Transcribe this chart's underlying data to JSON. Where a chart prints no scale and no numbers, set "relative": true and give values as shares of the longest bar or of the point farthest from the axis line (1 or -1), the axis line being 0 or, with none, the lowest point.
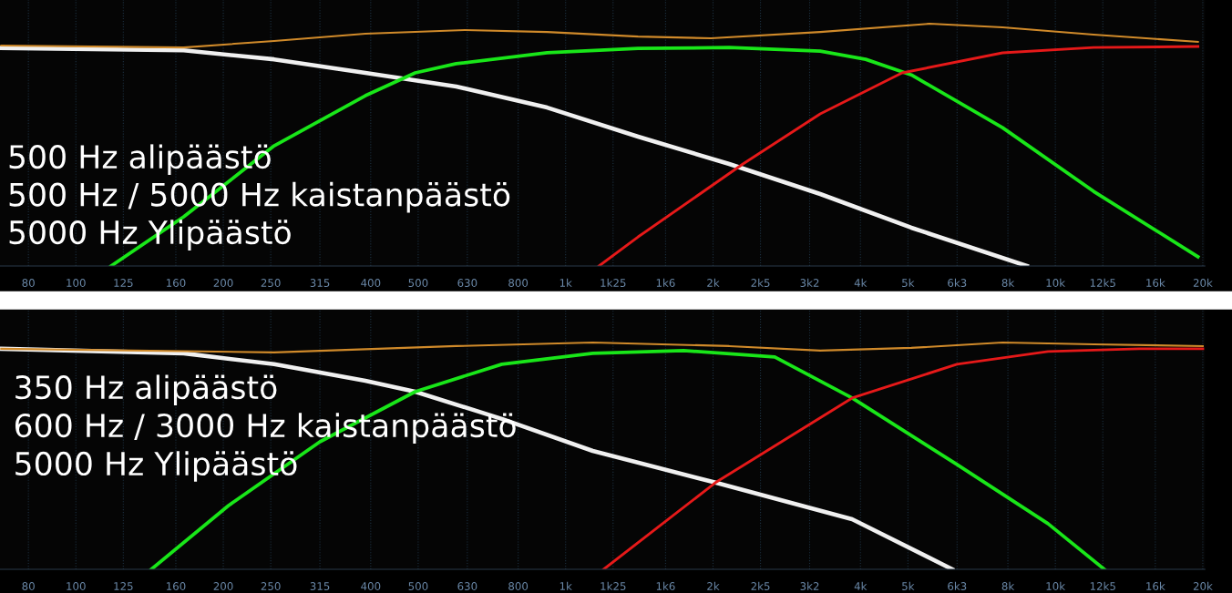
{
  "chart_data": [
    {
      "type": "line",
      "relative": true,
      "log": "x",
      "xlim": [
        70,
        20200
      ],
      "grid": "x",
      "legend": false,
      "marker": "none",
      "line_style": "solid",
      "xticks": [
        80,
        100,
        125,
        160,
        200,
        250,
        315,
        400,
        500,
        630,
        800,
        {
          "value": 1000,
          "label": "1k"
        },
        {
          "value": 1250,
          "label": "1k25"
        },
        {
          "value": 1600,
          "label": "1k6"
        },
        {
          "value": 2000,
          "label": "2k"
        },
        {
          "value": 2500,
          "label": "2k5"
        },
        {
          "value": 3150,
          "label": "3k2"
        },
        {
          "value": 4000,
          "label": "4k"
        },
        {
          "value": 5000,
          "label": "5k"
        },
        {
          "value": 6300,
          "label": "6k3"
        },
        {
          "value": 8000,
          "label": "8k"
        },
        {
          "value": 10000,
          "label": "10k"
        },
        {
          "value": 12500,
          "label": "12k5"
        },
        {
          "value": 16000,
          "label": "16k"
        },
        {
          "value": 20000,
          "label": "20k"
        }
      ],
      "annotations": [
        "500 Hz alipäästö",
        "500 Hz / 5000 Hz kaistanpäästö",
        "5000 Hz Ylipäästö"
      ],
      "series": [
        {
          "color": "#f0f0f0",
          "x": [
            70.4,
            166,
            254,
            390,
            598,
            917,
            1406,
            2158,
            3311,
            5080,
            8750
          ],
          "values": [
            0.9,
            0.89,
            0.853,
            0.797,
            0.741,
            0.654,
            0.534,
            0.421,
            0.297,
            0.158,
            0
          ]
        },
        {
          "color": "#19e619",
          "x": [
            118,
            166,
            254,
            390,
            493,
            598,
            917,
            1406,
            2158,
            3311,
            4100,
            5080,
            7800,
            11970,
            19550
          ],
          "values": [
            0,
            0.203,
            0.496,
            0.703,
            0.797,
            0.835,
            0.88,
            0.898,
            0.902,
            0.887,
            0.853,
            0.789,
            0.571,
            0.308,
            0.038
          ]
        },
        {
          "color": "#e61919",
          "x": [
            1170,
            1406,
            2302,
            3311,
            4865,
            7800,
            11970,
            19550
          ],
          "values": [
            0,
            0.12,
            0.421,
            0.628,
            0.797,
            0.88,
            0.902,
            0.906
          ]
        },
        {
          "color": "#d08a2a",
          "x": [
            70.4,
            166,
            254,
            390,
            624,
            917,
            1406,
            1982,
            3311,
            5535,
            7800,
            11970,
            19550
          ],
          "values": [
            0.91,
            0.902,
            0.929,
            0.959,
            0.974,
            0.966,
            0.947,
            0.94,
            0.966,
            1.0,
            0.985,
            0.955,
            0.925
          ]
        }
      ]
    },
    {
      "type": "line",
      "relative": true,
      "log": "x",
      "xlim": [
        70,
        20200
      ],
      "grid": "x",
      "legend": false,
      "marker": "none",
      "line_style": "solid",
      "xticks": [
        80,
        100,
        125,
        160,
        200,
        250,
        315,
        400,
        500,
        630,
        800,
        {
          "value": 1000,
          "label": "1k"
        },
        {
          "value": 1250,
          "label": "1k25"
        },
        {
          "value": 1600,
          "label": "1k6"
        },
        {
          "value": 2000,
          "label": "2k"
        },
        {
          "value": 2500,
          "label": "2k5"
        },
        {
          "value": 3150,
          "label": "3k2"
        },
        {
          "value": 4000,
          "label": "4k"
        },
        {
          "value": 5000,
          "label": "5k"
        },
        {
          "value": 6300,
          "label": "6k3"
        },
        {
          "value": 8000,
          "label": "8k"
        },
        {
          "value": 10000,
          "label": "10k"
        },
        {
          "value": 12500,
          "label": "12k5"
        },
        {
          "value": 16000,
          "label": "16k"
        },
        {
          "value": 20000,
          "label": "20k"
        }
      ],
      "annotations": [
        "350 Hz alipäästö",
        "600 Hz / 3000 Hz kaistanpäästö",
        "5000 Hz Ylipäästö"
      ],
      "series": [
        {
          "color": "#f0f0f0",
          "x": [
            70.4,
            166,
            254,
            390,
            493,
            741,
            1136,
            2023,
            3846,
            6160
          ],
          "values": [
            0.972,
            0.952,
            0.904,
            0.831,
            0.783,
            0.663,
            0.522,
            0.382,
            0.221,
            0
          ]
        },
        {
          "color": "#19e619",
          "x": [
            142.6,
            205,
            315,
            493,
            741,
            1136,
            1742,
            2673,
            3846,
            6295,
            9660,
            12590
          ],
          "values": [
            0,
            0.281,
            0.562,
            0.783,
            0.904,
            0.952,
            0.964,
            0.936,
            0.755,
            0.462,
            0.201,
            0
          ]
        },
        {
          "color": "#e61919",
          "x": [
            1196,
            2023,
            3846,
            6295,
            9660,
            14830,
            20000
          ],
          "values": [
            0,
            0.382,
            0.755,
            0.904,
            0.96,
            0.972,
            0.972
          ]
        },
        {
          "color": "#d08a2a",
          "x": [
            70.4,
            254,
            598,
            1136,
            2158,
            3311,
            5080,
            7800,
            11970,
            20000
          ],
          "values": [
            0.972,
            0.956,
            0.984,
            1.0,
            0.984,
            0.964,
            0.976,
            1.0,
            0.992,
            0.984
          ]
        }
      ]
    }
  ]
}
